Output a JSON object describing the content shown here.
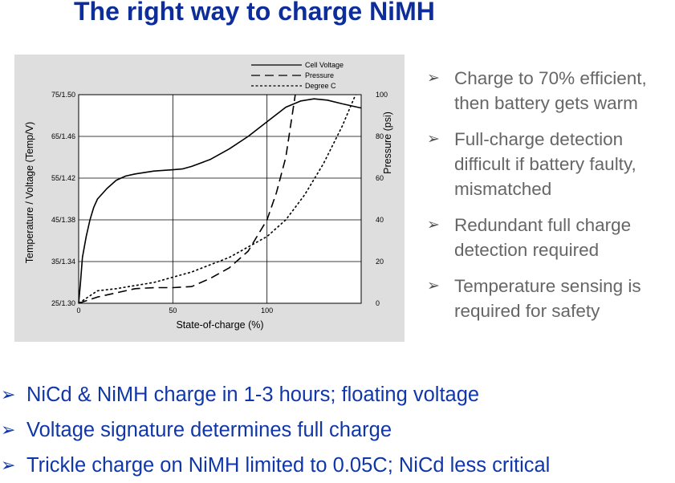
{
  "title": "The right way to charge NiMH",
  "chart_data": {
    "type": "line",
    "xlabel": "State-of-charge (%)",
    "ylabel_left": "Temperature / Voltage (Temp/V)",
    "ylabel_right": "Pressure (psi)",
    "x_ticks": [
      "0",
      "50",
      "100"
    ],
    "xlim": [
      0,
      150
    ],
    "left_ticks": [
      "25/1.30",
      "35/1.34",
      "45/1.38",
      "55/1.42",
      "65/1.46",
      "75/1.50"
    ],
    "left_tick_values": [
      25,
      35,
      45,
      55,
      65,
      75
    ],
    "ylim_left": [
      25,
      75
    ],
    "right_ticks": [
      "0",
      "20",
      "40",
      "60",
      "80",
      "100"
    ],
    "right_tick_values": [
      0,
      20,
      40,
      60,
      80,
      100
    ],
    "ylim_right": [
      0,
      100
    ],
    "grid": true,
    "legend_position": "top-right",
    "series": [
      {
        "name": "Cell Voltage",
        "style": "solid",
        "axis": "left",
        "points": [
          [
            0,
            25
          ],
          [
            1,
            30
          ],
          [
            2,
            36
          ],
          [
            4,
            41
          ],
          [
            6,
            45
          ],
          [
            8,
            48
          ],
          [
            10,
            50
          ],
          [
            15,
            52.5
          ],
          [
            20,
            54.5
          ],
          [
            25,
            55.5
          ],
          [
            30,
            56
          ],
          [
            40,
            56.7
          ],
          [
            50,
            57
          ],
          [
            55,
            57.2
          ],
          [
            60,
            57.8
          ],
          [
            70,
            59.5
          ],
          [
            80,
            62
          ],
          [
            90,
            65
          ],
          [
            100,
            68.5
          ],
          [
            110,
            72
          ],
          [
            118,
            73.5
          ],
          [
            125,
            74
          ],
          [
            132,
            73.7
          ],
          [
            140,
            72.8
          ],
          [
            150,
            71.8
          ]
        ]
      },
      {
        "name": "Pressure",
        "style": "dashed",
        "axis": "right",
        "points": [
          [
            0,
            0
          ],
          [
            10,
            3
          ],
          [
            20,
            5
          ],
          [
            30,
            7
          ],
          [
            40,
            7.5
          ],
          [
            50,
            7.5
          ],
          [
            60,
            8
          ],
          [
            70,
            12
          ],
          [
            80,
            17
          ],
          [
            90,
            25
          ],
          [
            100,
            40
          ],
          [
            105,
            53
          ],
          [
            110,
            70
          ],
          [
            115,
            100
          ]
        ]
      },
      {
        "name": "Degree C",
        "style": "dotted",
        "axis": "right",
        "points": [
          [
            0,
            0
          ],
          [
            10,
            6
          ],
          [
            20,
            7
          ],
          [
            40,
            10
          ],
          [
            60,
            15
          ],
          [
            80,
            22
          ],
          [
            100,
            32
          ],
          [
            110,
            40
          ],
          [
            120,
            52
          ],
          [
            130,
            67
          ],
          [
            140,
            85
          ],
          [
            147,
            100
          ]
        ]
      }
    ]
  },
  "right_bullets": [
    "Charge to 70% efficient, then battery gets warm",
    "Full-charge detection difficult if battery faulty, mismatched",
    "Redundant full charge detection required",
    "Temperature sensing is required for safety"
  ],
  "bottom_bullets": [
    "NiCd & NiMH charge in 1-3 hours; floating voltage",
    "Voltage signature determines full charge",
    "Trickle charge on NiMH limited to 0.05C; NiCd less critical"
  ],
  "bullet_glyph": "➢",
  "colors": {
    "title": "#0d2e9a",
    "bottom_text": "#1037a8",
    "right_text": "#666666",
    "chart_panel": "#dedede",
    "plot_area": "#ffffff",
    "line": "#000000"
  }
}
